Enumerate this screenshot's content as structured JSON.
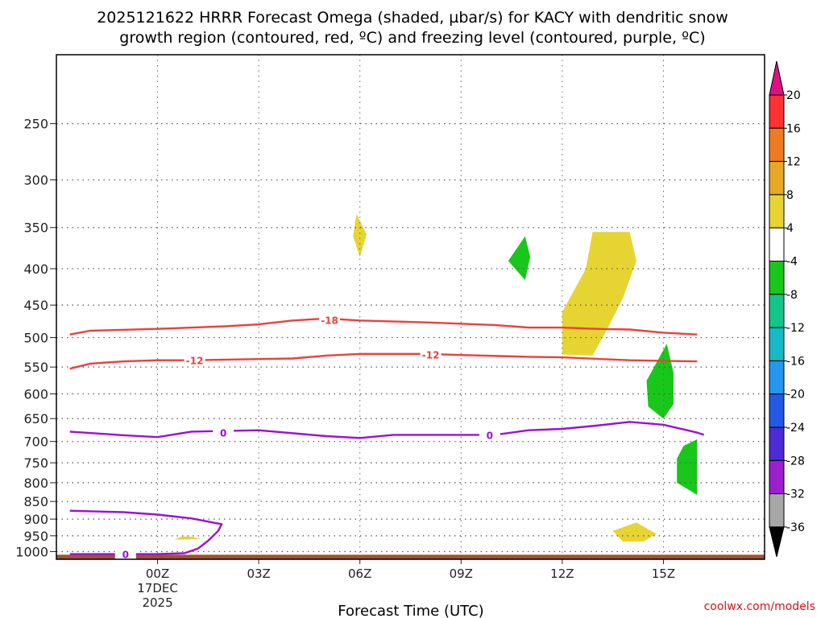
{
  "title": {
    "line1": "2025121622 HRRR Forecast Omega (shaded, µbar/s) for KACY with dendritic snow",
    "line2": "growth region (contoured, red, ºC) and freezing level (contoured, purple, ºC)"
  },
  "credit": "coolwx.com/models",
  "chart_data": {
    "type": "time-height cross section",
    "xlabel": "Forecast Time (UTC)",
    "ylabel": "",
    "x_range_hours": [
      -3,
      18
    ],
    "y_range_hpa": [
      200,
      1025
    ],
    "x_ticks": [
      {
        "hour": 0,
        "label": "00Z",
        "sub1": "17DEC",
        "sub2": "2025"
      },
      {
        "hour": 3,
        "label": "03Z"
      },
      {
        "hour": 6,
        "label": "06Z"
      },
      {
        "hour": 9,
        "label": "09Z"
      },
      {
        "hour": 12,
        "label": "12Z"
      },
      {
        "hour": 15,
        "label": "15Z"
      }
    ],
    "y_ticks": [
      250,
      300,
      350,
      400,
      450,
      500,
      550,
      600,
      650,
      700,
      750,
      800,
      850,
      900,
      950,
      1000
    ],
    "colorbar": {
      "labels": [
        "20",
        "16",
        "12",
        "8",
        "4",
        "-4",
        "-8",
        "-12",
        "-16",
        "-20",
        "-24",
        "-28",
        "-32",
        "-36"
      ],
      "colors": [
        "#ff3131",
        "#ee7b21",
        "#e8a826",
        "#e6d432",
        "#ffffff",
        "#19c61a",
        "#14c58a",
        "#16b9c4",
        "#2597ee",
        "#2459e6",
        "#4c2bd6",
        "#9c1fce",
        "#a7a7a7"
      ],
      "top_color": "#e10f85",
      "bottom_color": "#000000"
    },
    "contours": [
      {
        "name": "dgz -18C",
        "label": "-18",
        "color": "#ed3f3a",
        "points": [
          [
            -2.6,
            495
          ],
          [
            -2,
            489
          ],
          [
            0,
            486
          ],
          [
            2,
            482
          ],
          [
            3,
            479
          ],
          [
            4,
            473
          ],
          [
            5,
            470
          ],
          [
            6,
            473
          ],
          [
            8,
            476
          ],
          [
            10,
            480
          ],
          [
            11,
            484
          ],
          [
            12,
            484
          ],
          [
            13,
            486
          ],
          [
            14,
            487
          ],
          [
            15,
            492
          ],
          [
            16,
            495
          ]
        ]
      },
      {
        "name": "dgz -12C",
        "label": "-12",
        "color": "#ed3f3a",
        "points": [
          [
            -2.6,
            553
          ],
          [
            -2,
            544
          ],
          [
            -1,
            540
          ],
          [
            0,
            538
          ],
          [
            1,
            538
          ],
          [
            3,
            536
          ],
          [
            4,
            535
          ],
          [
            5,
            530
          ],
          [
            6,
            527
          ],
          [
            8,
            527
          ],
          [
            9,
            529
          ],
          [
            11,
            532
          ],
          [
            12,
            533
          ],
          [
            14,
            538
          ],
          [
            15,
            539
          ],
          [
            16,
            540
          ]
        ]
      },
      {
        "name": "freezing level 0C",
        "label": "0",
        "color": "#9d0fd6",
        "points": [
          [
            -2.6,
            678
          ],
          [
            -1,
            686
          ],
          [
            0,
            690
          ],
          [
            1,
            678
          ],
          [
            3,
            675
          ],
          [
            5,
            688
          ],
          [
            6,
            692
          ],
          [
            7,
            685
          ],
          [
            8,
            685
          ],
          [
            10,
            685
          ],
          [
            11,
            675
          ],
          [
            12,
            672
          ],
          [
            13,
            665
          ],
          [
            14,
            657
          ],
          [
            15,
            663
          ],
          [
            16,
            680
          ],
          [
            16.2,
            685
          ]
        ]
      },
      {
        "name": "freezing level 0C near surface",
        "label": "0",
        "color": "#9d0fd6",
        "points": [
          [
            -2.6,
            876
          ],
          [
            -1,
            880
          ],
          [
            0,
            887
          ],
          [
            1,
            898
          ],
          [
            1.9,
            915
          ],
          [
            1.8,
            935
          ],
          [
            1.5,
            965
          ],
          [
            1.2,
            990
          ],
          [
            0.8,
            1005
          ],
          [
            0,
            1008
          ],
          [
            -1,
            1008
          ],
          [
            -2.6,
            1008
          ]
        ]
      }
    ],
    "omega_areas": [
      {
        "name": "rising 4 to 8 at 06Z",
        "class": "4 to 8",
        "color": "#e6d432",
        "points": [
          [
            5.9,
            335
          ],
          [
            6.2,
            358
          ],
          [
            6.0,
            385
          ],
          [
            5.8,
            360
          ]
        ]
      },
      {
        "name": "sinking -4 to -8 near 11Z",
        "class": "-4 to -8",
        "color": "#19c61a",
        "points": [
          [
            10.9,
            360
          ],
          [
            11.05,
            385
          ],
          [
            10.9,
            415
          ],
          [
            10.4,
            390
          ]
        ]
      },
      {
        "name": "rising 4 to 8 around 12-14Z",
        "class": "4 to 8",
        "color": "#e6d432",
        "points": [
          [
            12.9,
            355
          ],
          [
            14.0,
            355
          ],
          [
            14.2,
            390
          ],
          [
            13.8,
            440
          ],
          [
            13.3,
            490
          ],
          [
            12.9,
            530
          ],
          [
            12,
            528
          ],
          [
            12,
            460
          ],
          [
            12.7,
            400
          ]
        ]
      },
      {
        "name": "sinking -4 to -8 near 15Z",
        "class": "-4 to -8",
        "color": "#19c61a",
        "points": [
          [
            15.1,
            510
          ],
          [
            15.3,
            560
          ],
          [
            15.3,
            620
          ],
          [
            15.0,
            650
          ],
          [
            14.55,
            625
          ],
          [
            14.5,
            575
          ]
        ]
      },
      {
        "name": "sinking -4 to -8 near 16Z low",
        "class": "-4 to -8",
        "color": "#19c61a",
        "points": [
          [
            16,
            695
          ],
          [
            16,
            832
          ],
          [
            15.4,
            800
          ],
          [
            15.4,
            740
          ],
          [
            15.6,
            710
          ]
        ]
      },
      {
        "name": "rising 4 to 8 near 01Z",
        "class": "4 to 8",
        "color": "#e6d432",
        "points": [
          [
            0.5,
            962
          ],
          [
            1.3,
            960
          ],
          [
            1.0,
            952
          ],
          [
            0.7,
            952
          ]
        ]
      },
      {
        "name": "rising 4 to 8 near 14Z low",
        "class": "4 to 8",
        "color": "#e6d432",
        "points": [
          [
            13.5,
            935
          ],
          [
            14.2,
            910
          ],
          [
            14.8,
            945
          ],
          [
            14.4,
            968
          ],
          [
            13.8,
            968
          ]
        ]
      }
    ],
    "ground": {
      "color": "#a0522d",
      "from_hpa": 1010
    }
  }
}
